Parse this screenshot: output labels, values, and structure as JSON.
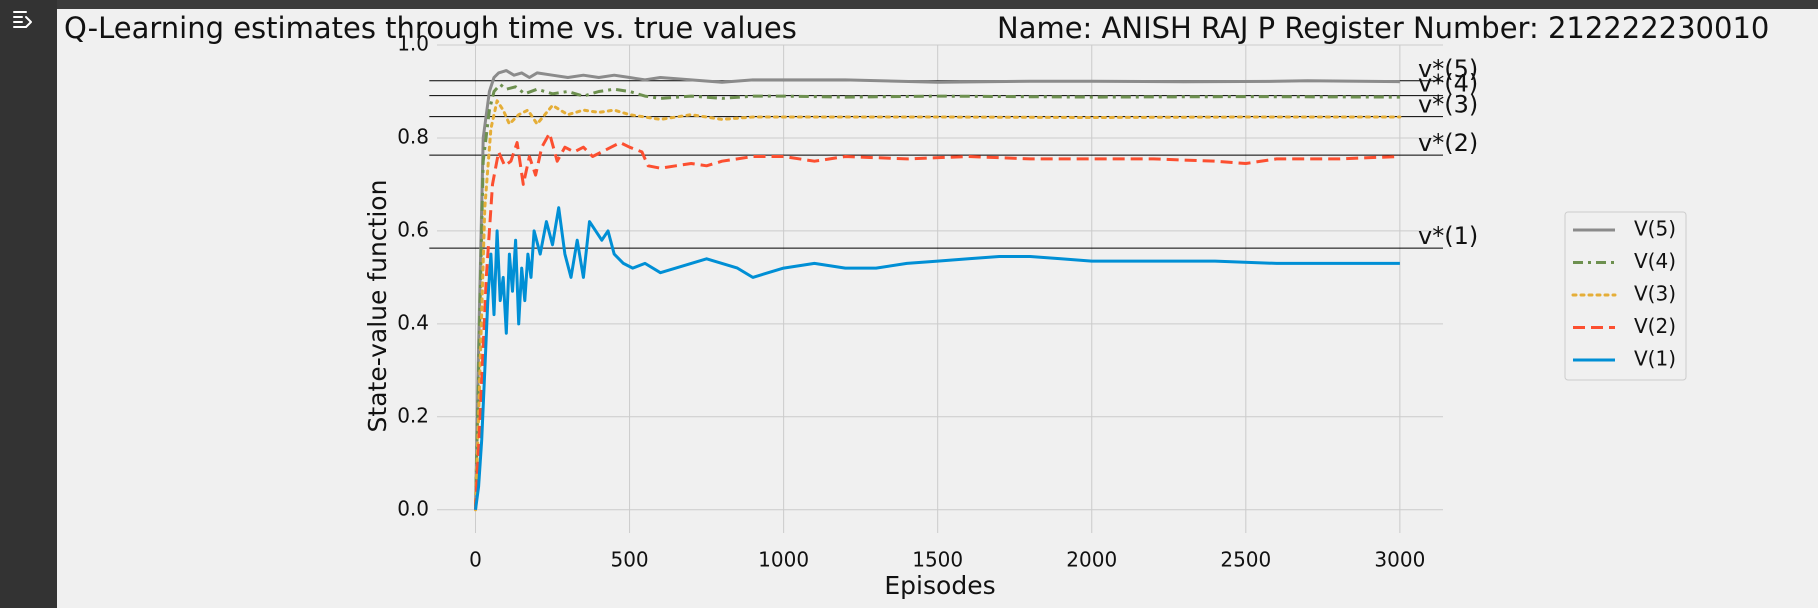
{
  "cell": {
    "output_toggle_icon": "output-collapse-icon"
  },
  "colors": {
    "page_background": "#f0f0f0",
    "sidebar": "#333333",
    "grid": "#cbcbcb",
    "reference_line": "#000000"
  },
  "chart_data": {
    "type": "line",
    "title": "Q-Learning estimates through time vs. true values",
    "subtitle": "Name:  ANISH RAJ P  Register Number: 212222230010",
    "xlabel": "Episodes",
    "ylabel": "State-value function",
    "xlim": [
      -125,
      3140
    ],
    "ylim": [
      -0.05,
      1.0
    ],
    "x_ticks": [
      0,
      500,
      1000,
      1500,
      2000,
      2500,
      3000
    ],
    "x_tick_labels": [
      "0",
      "500",
      "1000",
      "1500",
      "2000",
      "2500",
      "3000"
    ],
    "y_ticks": [
      0.0,
      0.2,
      0.4,
      0.6,
      0.8,
      1.0
    ],
    "y_tick_labels": [
      "0.0",
      "0.2",
      "0.4",
      "0.6",
      "0.8",
      "1.0"
    ],
    "grid": true,
    "legend_position": "right",
    "reference_lines": [
      {
        "label": "v*(5)",
        "y": 0.923
      },
      {
        "label": "v*(4)",
        "y": 0.891
      },
      {
        "label": "v*(3)",
        "y": 0.846
      },
      {
        "label": "v*(2)",
        "y": 0.763
      },
      {
        "label": "v*(1)",
        "y": 0.563
      }
    ],
    "reference_line_x_range": [
      -150,
      3140
    ],
    "series": [
      {
        "name": "V(5)",
        "color": "#8b8b8b",
        "dash": "solid",
        "points": [
          [
            0,
            0.0
          ],
          [
            10,
            0.35
          ],
          [
            25,
            0.8
          ],
          [
            45,
            0.9
          ],
          [
            60,
            0.93
          ],
          [
            75,
            0.94
          ],
          [
            100,
            0.945
          ],
          [
            125,
            0.935
          ],
          [
            150,
            0.94
          ],
          [
            175,
            0.93
          ],
          [
            200,
            0.94
          ],
          [
            250,
            0.935
          ],
          [
            300,
            0.93
          ],
          [
            350,
            0.935
          ],
          [
            400,
            0.93
          ],
          [
            450,
            0.935
          ],
          [
            500,
            0.93
          ],
          [
            550,
            0.925
          ],
          [
            600,
            0.93
          ],
          [
            700,
            0.925
          ],
          [
            800,
            0.92
          ],
          [
            900,
            0.925
          ],
          [
            1000,
            0.925
          ],
          [
            1200,
            0.925
          ],
          [
            1500,
            0.92
          ],
          [
            1800,
            0.922
          ],
          [
            2000,
            0.922
          ],
          [
            2300,
            0.921
          ],
          [
            2600,
            0.922
          ],
          [
            2700,
            0.923
          ],
          [
            3000,
            0.921
          ]
        ]
      },
      {
        "name": "V(4)",
        "color": "#6d904f",
        "dash": "dashdot",
        "points": [
          [
            0,
            0.0
          ],
          [
            10,
            0.3
          ],
          [
            25,
            0.75
          ],
          [
            45,
            0.86
          ],
          [
            60,
            0.9
          ],
          [
            80,
            0.915
          ],
          [
            100,
            0.905
          ],
          [
            130,
            0.91
          ],
          [
            160,
            0.895
          ],
          [
            200,
            0.905
          ],
          [
            250,
            0.895
          ],
          [
            300,
            0.9
          ],
          [
            350,
            0.89
          ],
          [
            400,
            0.9
          ],
          [
            450,
            0.905
          ],
          [
            500,
            0.9
          ],
          [
            550,
            0.89
          ],
          [
            600,
            0.885
          ],
          [
            700,
            0.89
          ],
          [
            800,
            0.885
          ],
          [
            900,
            0.89
          ],
          [
            1000,
            0.89
          ],
          [
            1200,
            0.888
          ],
          [
            1500,
            0.89
          ],
          [
            2000,
            0.888
          ],
          [
            2500,
            0.889
          ],
          [
            3000,
            0.888
          ]
        ]
      },
      {
        "name": "V(3)",
        "color": "#e5ae38",
        "dash": "dotted",
        "points": [
          [
            0,
            0.0
          ],
          [
            10,
            0.2
          ],
          [
            30,
            0.65
          ],
          [
            50,
            0.82
          ],
          [
            70,
            0.88
          ],
          [
            90,
            0.86
          ],
          [
            110,
            0.83
          ],
          [
            140,
            0.85
          ],
          [
            170,
            0.86
          ],
          [
            200,
            0.83
          ],
          [
            250,
            0.87
          ],
          [
            300,
            0.85
          ],
          [
            350,
            0.86
          ],
          [
            400,
            0.855
          ],
          [
            450,
            0.86
          ],
          [
            500,
            0.85
          ],
          [
            550,
            0.845
          ],
          [
            600,
            0.84
          ],
          [
            700,
            0.85
          ],
          [
            800,
            0.84
          ],
          [
            900,
            0.845
          ],
          [
            1000,
            0.845
          ],
          [
            1200,
            0.845
          ],
          [
            1500,
            0.845
          ],
          [
            2000,
            0.844
          ],
          [
            2500,
            0.845
          ],
          [
            3000,
            0.845
          ]
        ]
      },
      {
        "name": "V(2)",
        "color": "#fc4f30",
        "dash": "dashed",
        "points": [
          [
            0,
            0.0
          ],
          [
            15,
            0.2
          ],
          [
            35,
            0.5
          ],
          [
            55,
            0.7
          ],
          [
            75,
            0.77
          ],
          [
            95,
            0.74
          ],
          [
            115,
            0.75
          ],
          [
            135,
            0.79
          ],
          [
            155,
            0.7
          ],
          [
            175,
            0.76
          ],
          [
            195,
            0.72
          ],
          [
            215,
            0.78
          ],
          [
            240,
            0.81
          ],
          [
            265,
            0.75
          ],
          [
            290,
            0.78
          ],
          [
            320,
            0.77
          ],
          [
            350,
            0.78
          ],
          [
            380,
            0.76
          ],
          [
            410,
            0.77
          ],
          [
            440,
            0.78
          ],
          [
            470,
            0.79
          ],
          [
            500,
            0.78
          ],
          [
            540,
            0.77
          ],
          [
            560,
            0.74
          ],
          [
            600,
            0.735
          ],
          [
            650,
            0.74
          ],
          [
            700,
            0.745
          ],
          [
            750,
            0.74
          ],
          [
            800,
            0.75
          ],
          [
            900,
            0.76
          ],
          [
            1000,
            0.76
          ],
          [
            1100,
            0.75
          ],
          [
            1200,
            0.76
          ],
          [
            1400,
            0.755
          ],
          [
            1600,
            0.76
          ],
          [
            1800,
            0.755
          ],
          [
            2000,
            0.755
          ],
          [
            2200,
            0.755
          ],
          [
            2400,
            0.75
          ],
          [
            2500,
            0.745
          ],
          [
            2600,
            0.755
          ],
          [
            2800,
            0.755
          ],
          [
            3000,
            0.76
          ]
        ]
      },
      {
        "name": "V(1)",
        "color": "#008fd5",
        "dash": "solid",
        "points": [
          [
            0,
            0.0
          ],
          [
            10,
            0.05
          ],
          [
            20,
            0.15
          ],
          [
            30,
            0.3
          ],
          [
            40,
            0.45
          ],
          [
            50,
            0.55
          ],
          [
            60,
            0.42
          ],
          [
            70,
            0.6
          ],
          [
            80,
            0.45
          ],
          [
            90,
            0.5
          ],
          [
            100,
            0.38
          ],
          [
            110,
            0.55
          ],
          [
            120,
            0.47
          ],
          [
            130,
            0.58
          ],
          [
            140,
            0.4
          ],
          [
            150,
            0.52
          ],
          [
            160,
            0.45
          ],
          [
            170,
            0.55
          ],
          [
            180,
            0.5
          ],
          [
            190,
            0.6
          ],
          [
            210,
            0.55
          ],
          [
            230,
            0.62
          ],
          [
            250,
            0.57
          ],
          [
            270,
            0.65
          ],
          [
            290,
            0.55
          ],
          [
            310,
            0.5
          ],
          [
            330,
            0.58
          ],
          [
            350,
            0.5
          ],
          [
            370,
            0.62
          ],
          [
            390,
            0.6
          ],
          [
            410,
            0.58
          ],
          [
            430,
            0.6
          ],
          [
            450,
            0.55
          ],
          [
            480,
            0.53
          ],
          [
            510,
            0.52
          ],
          [
            550,
            0.53
          ],
          [
            600,
            0.51
          ],
          [
            650,
            0.52
          ],
          [
            700,
            0.53
          ],
          [
            750,
            0.54
          ],
          [
            800,
            0.53
          ],
          [
            850,
            0.52
          ],
          [
            900,
            0.5
          ],
          [
            950,
            0.51
          ],
          [
            1000,
            0.52
          ],
          [
            1100,
            0.53
          ],
          [
            1200,
            0.52
          ],
          [
            1300,
            0.52
          ],
          [
            1400,
            0.53
          ],
          [
            1500,
            0.535
          ],
          [
            1600,
            0.54
          ],
          [
            1700,
            0.545
          ],
          [
            1800,
            0.545
          ],
          [
            1900,
            0.54
          ],
          [
            2000,
            0.535
          ],
          [
            2200,
            0.535
          ],
          [
            2400,
            0.535
          ],
          [
            2600,
            0.53
          ],
          [
            2800,
            0.53
          ],
          [
            3000,
            0.53
          ]
        ]
      }
    ]
  }
}
